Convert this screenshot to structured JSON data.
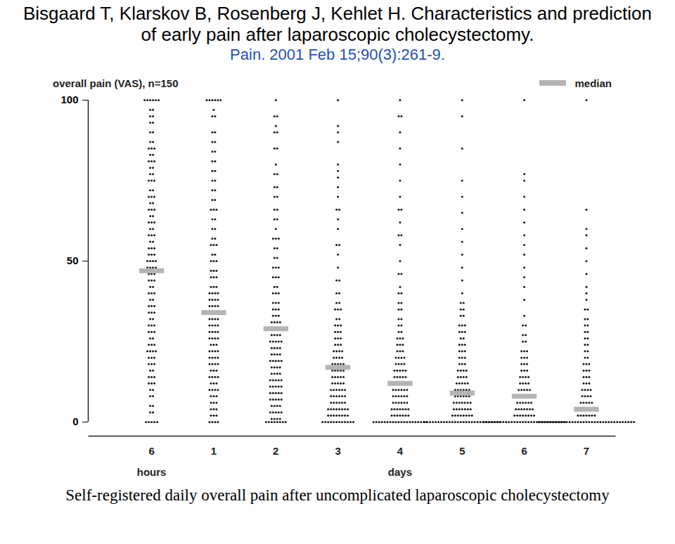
{
  "chart_data": {
    "type": "strip",
    "title": "Bisgaard T, Klarskov B, Rosenberg J, Kehlet H. Characteristics and prediction of early pain after laparoscopic cholecystectomy.",
    "subtitle": "Pain. 2001 Feb 15;90(3):261-9.",
    "caption": "Self-registered daily overall pain after uncomplicated laparoscopic cholecystectomy",
    "ylabel": "overall pain (VAS), n=150",
    "categories": [
      "6",
      "1",
      "2",
      "3",
      "4",
      "5",
      "6",
      "7"
    ],
    "group_labels": [
      {
        "label": "hours",
        "under": 0
      },
      {
        "label": "days",
        "under": 4
      }
    ],
    "median_label": "median",
    "medians": [
      47,
      34,
      29,
      17,
      12,
      9,
      8,
      4
    ],
    "color": "#1a1a1a",
    "ylim": [
      0,
      100
    ],
    "yticks": [
      0,
      50,
      100
    ],
    "distributions": [
      [
        [
          100,
          6
        ],
        [
          97,
          2
        ],
        [
          95,
          2
        ],
        [
          93,
          2
        ],
        [
          90,
          2
        ],
        [
          87,
          2
        ],
        [
          85,
          3
        ],
        [
          83,
          2
        ],
        [
          81,
          3
        ],
        [
          79,
          2
        ],
        [
          77,
          2
        ],
        [
          75,
          3
        ],
        [
          72,
          2
        ],
        [
          70,
          3
        ],
        [
          68,
          2
        ],
        [
          66,
          3
        ],
        [
          64,
          2
        ],
        [
          62,
          3
        ],
        [
          60,
          2
        ],
        [
          58,
          3
        ],
        [
          56,
          2
        ],
        [
          54,
          3
        ],
        [
          52,
          3
        ],
        [
          50,
          4
        ],
        [
          48,
          4
        ],
        [
          46,
          3
        ],
        [
          44,
          3
        ],
        [
          42,
          2
        ],
        [
          40,
          3
        ],
        [
          38,
          2
        ],
        [
          36,
          3
        ],
        [
          34,
          3
        ],
        [
          32,
          2
        ],
        [
          30,
          3
        ],
        [
          28,
          3
        ],
        [
          26,
          2
        ],
        [
          24,
          3
        ],
        [
          22,
          4
        ],
        [
          20,
          3
        ],
        [
          18,
          3
        ],
        [
          16,
          2
        ],
        [
          14,
          3
        ],
        [
          12,
          3
        ],
        [
          10,
          2
        ],
        [
          8,
          2
        ],
        [
          5,
          2
        ],
        [
          3,
          2
        ],
        [
          0,
          5
        ]
      ],
      [
        [
          100,
          6
        ],
        [
          97,
          1
        ],
        [
          95,
          2
        ],
        [
          90,
          2
        ],
        [
          87,
          2
        ],
        [
          84,
          2
        ],
        [
          81,
          2
        ],
        [
          78,
          2
        ],
        [
          75,
          2
        ],
        [
          72,
          2
        ],
        [
          69,
          2
        ],
        [
          66,
          3
        ],
        [
          63,
          2
        ],
        [
          60,
          2
        ],
        [
          57,
          2
        ],
        [
          55,
          3
        ],
        [
          52,
          2
        ],
        [
          50,
          3
        ],
        [
          47,
          3
        ],
        [
          45,
          3
        ],
        [
          42,
          3
        ],
        [
          40,
          4
        ],
        [
          38,
          4
        ],
        [
          36,
          4
        ],
        [
          34,
          5
        ],
        [
          32,
          4
        ],
        [
          30,
          4
        ],
        [
          28,
          4
        ],
        [
          26,
          4
        ],
        [
          24,
          3
        ],
        [
          22,
          4
        ],
        [
          20,
          4
        ],
        [
          18,
          4
        ],
        [
          16,
          3
        ],
        [
          14,
          4
        ],
        [
          12,
          3
        ],
        [
          10,
          4
        ],
        [
          8,
          3
        ],
        [
          6,
          3
        ],
        [
          4,
          3
        ],
        [
          2,
          3
        ],
        [
          0,
          4
        ]
      ],
      [
        [
          100,
          1
        ],
        [
          95,
          2
        ],
        [
          92,
          1
        ],
        [
          90,
          2
        ],
        [
          85,
          2
        ],
        [
          80,
          1
        ],
        [
          77,
          2
        ],
        [
          73,
          2
        ],
        [
          70,
          2
        ],
        [
          66,
          2
        ],
        [
          63,
          2
        ],
        [
          60,
          1
        ],
        [
          57,
          3
        ],
        [
          54,
          2
        ],
        [
          51,
          2
        ],
        [
          48,
          3
        ],
        [
          45,
          3
        ],
        [
          42,
          2
        ],
        [
          40,
          3
        ],
        [
          37,
          3
        ],
        [
          35,
          3
        ],
        [
          33,
          3
        ],
        [
          31,
          4
        ],
        [
          29,
          5
        ],
        [
          27,
          4
        ],
        [
          25,
          5
        ],
        [
          23,
          4
        ],
        [
          21,
          4
        ],
        [
          19,
          5
        ],
        [
          17,
          4
        ],
        [
          15,
          4
        ],
        [
          13,
          5
        ],
        [
          11,
          5
        ],
        [
          9,
          5
        ],
        [
          7,
          5
        ],
        [
          5,
          4
        ],
        [
          3,
          5
        ],
        [
          1,
          4
        ],
        [
          0,
          8
        ]
      ],
      [
        [
          100,
          1
        ],
        [
          92,
          1
        ],
        [
          90,
          1
        ],
        [
          87,
          1
        ],
        [
          80,
          1
        ],
        [
          78,
          1
        ],
        [
          76,
          1
        ],
        [
          73,
          1
        ],
        [
          70,
          1
        ],
        [
          66,
          2
        ],
        [
          63,
          1
        ],
        [
          60,
          1
        ],
        [
          55,
          2
        ],
        [
          52,
          1
        ],
        [
          48,
          1
        ],
        [
          44,
          2
        ],
        [
          40,
          2
        ],
        [
          37,
          2
        ],
        [
          35,
          3
        ],
        [
          32,
          2
        ],
        [
          30,
          3
        ],
        [
          28,
          3
        ],
        [
          26,
          3
        ],
        [
          24,
          3
        ],
        [
          22,
          4
        ],
        [
          20,
          4
        ],
        [
          18,
          5
        ],
        [
          16,
          5
        ],
        [
          14,
          5
        ],
        [
          12,
          5
        ],
        [
          10,
          6
        ],
        [
          8,
          6
        ],
        [
          6,
          6
        ],
        [
          4,
          8
        ],
        [
          2,
          8
        ],
        [
          0,
          12
        ]
      ],
      [
        [
          100,
          1
        ],
        [
          95,
          2
        ],
        [
          90,
          1
        ],
        [
          85,
          1
        ],
        [
          80,
          1
        ],
        [
          75,
          1
        ],
        [
          70,
          1
        ],
        [
          66,
          2
        ],
        [
          62,
          1
        ],
        [
          58,
          2
        ],
        [
          55,
          1
        ],
        [
          50,
          1
        ],
        [
          46,
          2
        ],
        [
          42,
          1
        ],
        [
          40,
          2
        ],
        [
          37,
          2
        ],
        [
          35,
          2
        ],
        [
          32,
          2
        ],
        [
          30,
          2
        ],
        [
          28,
          2
        ],
        [
          26,
          3
        ],
        [
          24,
          3
        ],
        [
          22,
          3
        ],
        [
          20,
          4
        ],
        [
          18,
          4
        ],
        [
          16,
          5
        ],
        [
          14,
          5
        ],
        [
          12,
          6
        ],
        [
          10,
          6
        ],
        [
          8,
          6
        ],
        [
          6,
          6
        ],
        [
          4,
          7
        ],
        [
          2,
          7
        ],
        [
          0,
          20
        ]
      ],
      [
        [
          100,
          1
        ],
        [
          95,
          1
        ],
        [
          85,
          1
        ],
        [
          75,
          1
        ],
        [
          70,
          1
        ],
        [
          65,
          1
        ],
        [
          60,
          1
        ],
        [
          56,
          1
        ],
        [
          52,
          1
        ],
        [
          48,
          1
        ],
        [
          44,
          1
        ],
        [
          40,
          1
        ],
        [
          37,
          2
        ],
        [
          35,
          2
        ],
        [
          33,
          2
        ],
        [
          30,
          3
        ],
        [
          28,
          3
        ],
        [
          26,
          2
        ],
        [
          24,
          3
        ],
        [
          22,
          3
        ],
        [
          20,
          3
        ],
        [
          18,
          3
        ],
        [
          16,
          4
        ],
        [
          14,
          4
        ],
        [
          12,
          5
        ],
        [
          10,
          6
        ],
        [
          8,
          6
        ],
        [
          6,
          7
        ],
        [
          4,
          7
        ],
        [
          2,
          8
        ],
        [
          0,
          28
        ]
      ],
      [
        [
          100,
          1
        ],
        [
          77,
          1
        ],
        [
          75,
          1
        ],
        [
          70,
          1
        ],
        [
          66,
          1
        ],
        [
          62,
          1
        ],
        [
          58,
          1
        ],
        [
          55,
          1
        ],
        [
          52,
          1
        ],
        [
          48,
          1
        ],
        [
          45,
          1
        ],
        [
          42,
          1
        ],
        [
          38,
          1
        ],
        [
          33,
          1
        ],
        [
          30,
          2
        ],
        [
          27,
          2
        ],
        [
          25,
          2
        ],
        [
          22,
          3
        ],
        [
          20,
          3
        ],
        [
          18,
          3
        ],
        [
          16,
          3
        ],
        [
          14,
          4
        ],
        [
          12,
          4
        ],
        [
          10,
          5
        ],
        [
          8,
          6
        ],
        [
          6,
          6
        ],
        [
          4,
          7
        ],
        [
          2,
          8
        ],
        [
          0,
          30
        ]
      ],
      [
        [
          100,
          1
        ],
        [
          66,
          1
        ],
        [
          60,
          1
        ],
        [
          58,
          1
        ],
        [
          54,
          1
        ],
        [
          50,
          1
        ],
        [
          46,
          1
        ],
        [
          42,
          1
        ],
        [
          40,
          1
        ],
        [
          38,
          1
        ],
        [
          35,
          2
        ],
        [
          32,
          2
        ],
        [
          30,
          2
        ],
        [
          28,
          2
        ],
        [
          26,
          2
        ],
        [
          24,
          2
        ],
        [
          22,
          2
        ],
        [
          20,
          2
        ],
        [
          18,
          3
        ],
        [
          16,
          3
        ],
        [
          14,
          3
        ],
        [
          12,
          3
        ],
        [
          10,
          4
        ],
        [
          8,
          4
        ],
        [
          6,
          5
        ],
        [
          4,
          6
        ],
        [
          2,
          7
        ],
        [
          0,
          35
        ]
      ]
    ]
  }
}
